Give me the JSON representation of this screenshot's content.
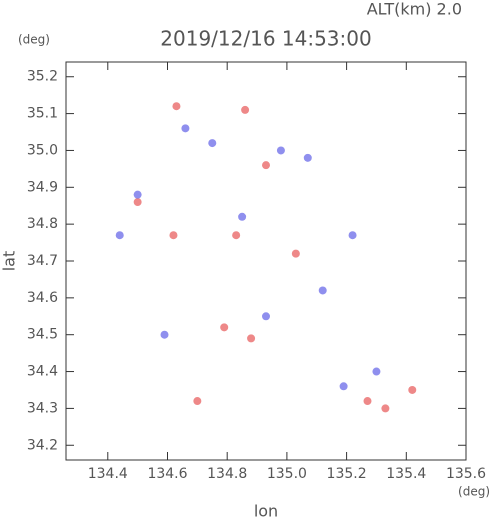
{
  "chart_data": {
    "type": "scatter",
    "title": "2019/12/16 14:53:00",
    "subtitle": "ALT(km) 2.0",
    "y_unit": "(deg)",
    "x_unit": "(deg)",
    "x_label": "lon",
    "y_label": "lat",
    "xlim": [
      134.26,
      135.6
    ],
    "ylim": [
      34.16,
      35.24
    ],
    "xticks": [
      134.4,
      134.6,
      134.8,
      {
        "value": 135,
        "label": "135.0"
      },
      135.2,
      135.4,
      135.6
    ],
    "yticks": [
      34.2,
      34.3,
      34.4,
      34.5,
      34.6,
      34.7,
      34.8,
      34.9,
      {
        "value": 35,
        "label": "35.0"
      },
      35.1,
      35.2
    ],
    "series": [
      {
        "color": "#e86060",
        "x": [
          134.63,
          134.86,
          134.5,
          134.7,
          135.27,
          135.42,
          134.83,
          134.93,
          134.88,
          135.03,
          134.62,
          134.79,
          135.33
        ],
        "y": [
          35.12,
          35.11,
          34.86,
          34.32,
          34.32,
          34.35,
          34.77,
          34.96,
          34.49,
          34.72,
          34.77,
          34.52,
          34.3
        ]
      },
      {
        "color": "#6a6ae8",
        "x": [
          134.5,
          134.98,
          134.75,
          135.22,
          134.44,
          135.3,
          134.59,
          134.93,
          135.12,
          135.07,
          134.66,
          134.85,
          135.19
        ],
        "y": [
          34.88,
          35.0,
          35.02,
          34.77,
          34.77,
          34.4,
          34.5,
          34.55,
          34.62,
          34.98,
          35.06,
          34.82,
          34.36
        ]
      }
    ]
  }
}
